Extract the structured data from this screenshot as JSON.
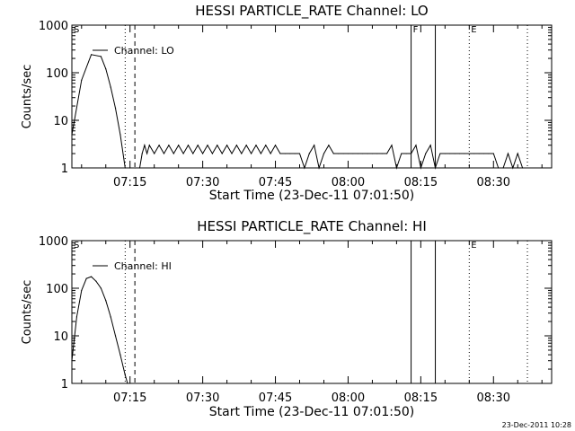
{
  "chart_data": [
    {
      "type": "line",
      "title": "HESSI PARTICLE_RATE Channel: LO",
      "xlabel": "Start Time (23-Dec-11 07:01:50)",
      "ylabel": "Counts/sec",
      "y_scale": "log",
      "ylim": [
        1,
        1000
      ],
      "xlim": [
        "07:03:00",
        "08:42:00"
      ],
      "x_ticks": [
        "07:15",
        "07:30",
        "07:45",
        "08:00",
        "08:15",
        "08:30"
      ],
      "y_ticks": [
        "1",
        "10",
        "100",
        "1000"
      ],
      "legend": "top-left",
      "grid": false,
      "series": [
        {
          "name": "Channel: LO",
          "x": [
            "07:03:00",
            "07:05:00",
            "07:07:00",
            "07:09:00",
            "07:10:00",
            "07:11:00",
            "07:12:00",
            "07:13:00",
            "07:14:00",
            "07:15:00",
            "07:16:00",
            "07:17:00",
            "07:17:30",
            "07:18:00",
            "07:18:30",
            "07:19:00",
            "07:20:00",
            "07:21:00",
            "07:22:00",
            "07:23:00",
            "07:24:00",
            "07:25:00",
            "07:26:00",
            "07:27:00",
            "07:28:00",
            "07:29:00",
            "07:30:00",
            "07:31:00",
            "07:32:00",
            "07:33:00",
            "07:34:00",
            "07:35:00",
            "07:36:00",
            "07:37:00",
            "07:38:00",
            "07:39:00",
            "07:40:00",
            "07:41:00",
            "07:42:00",
            "07:43:00",
            "07:44:00",
            "07:45:00",
            "07:46:00",
            "07:47:00",
            "07:48:00",
            "07:49:00",
            "07:50:00",
            "07:51:00",
            "07:52:00",
            "07:53:00",
            "07:54:00",
            "07:55:00",
            "07:56:00",
            "07:57:00",
            "07:58:00",
            "07:59:00",
            "08:00:00",
            "08:01:00",
            "08:02:00",
            "08:03:00",
            "08:04:00",
            "08:05:00",
            "08:06:00",
            "08:07:00",
            "08:08:00",
            "08:09:00",
            "08:10:00",
            "08:11:00",
            "08:12:00",
            "08:13:00",
            "08:14:00",
            "08:15:00",
            "08:16:00",
            "08:17:00",
            "08:18:00",
            "08:19:00",
            "08:20:00",
            "08:21:00",
            "08:22:00",
            "08:23:00",
            "08:24:00",
            "08:25:00",
            "08:26:00",
            "08:27:00",
            "08:28:00",
            "08:29:00",
            "08:30:00",
            "08:31:00",
            "08:32:00",
            "08:33:00",
            "08:34:00",
            "08:35:00",
            "08:36:00"
          ],
          "values": [
            5,
            70,
            240,
            220,
            120,
            50,
            18,
            5,
            1,
            1,
            1,
            1,
            2,
            3,
            2,
            3,
            2,
            3,
            2,
            3,
            2,
            3,
            2,
            3,
            2,
            3,
            2,
            3,
            2,
            3,
            2,
            3,
            2,
            3,
            2,
            3,
            2,
            3,
            2,
            3,
            2,
            3,
            2,
            2,
            2,
            2,
            2,
            1,
            2,
            3,
            1,
            2,
            3,
            2,
            2,
            2,
            2,
            2,
            2,
            2,
            2,
            2,
            2,
            2,
            2,
            3,
            1,
            2,
            2,
            2,
            3,
            1,
            2,
            3,
            1,
            2,
            2,
            2,
            2,
            2,
            2,
            2,
            2,
            2,
            2,
            2,
            2,
            1,
            1,
            2,
            1,
            2,
            1
          ]
        }
      ],
      "annotations": [
        {
          "label": "S",
          "x": "07:03:00",
          "style": "dotted"
        },
        {
          "label": "",
          "x": "07:14:00",
          "style": "dotted"
        },
        {
          "label": "",
          "x": "07:16:00",
          "style": "dashed"
        },
        {
          "label": "F",
          "x": "08:13:00",
          "style": "solid"
        },
        {
          "label": "",
          "x": "08:18:00",
          "style": "solid"
        },
        {
          "label": "E",
          "x": "08:25:00",
          "style": "dotted"
        },
        {
          "label": "",
          "x": "08:37:00",
          "style": "dotted"
        }
      ]
    },
    {
      "type": "line",
      "title": "HESSI PARTICLE_RATE Channel: HI",
      "xlabel": "Start Time (23-Dec-11 07:01:50)",
      "ylabel": "Counts/sec",
      "y_scale": "log",
      "ylim": [
        1,
        1000
      ],
      "xlim": [
        "07:03:00",
        "08:42:00"
      ],
      "x_ticks": [
        "07:15",
        "07:30",
        "07:45",
        "08:00",
        "08:15",
        "08:30"
      ],
      "y_ticks": [
        "1",
        "10",
        "100",
        "1000"
      ],
      "legend": "top-left",
      "grid": false,
      "series": [
        {
          "name": "Channel: HI",
          "x": [
            "07:03:00",
            "07:04:00",
            "07:05:00",
            "07:06:00",
            "07:07:00",
            "07:08:00",
            "07:09:00",
            "07:10:00",
            "07:11:00",
            "07:12:00",
            "07:13:00",
            "07:14:00",
            "07:14:30"
          ],
          "values": [
            3,
            25,
            90,
            160,
            175,
            140,
            100,
            55,
            25,
            10,
            4,
            1.5,
            1
          ]
        }
      ],
      "annotations": [
        {
          "label": "S",
          "x": "07:03:00",
          "style": "dotted"
        },
        {
          "label": "",
          "x": "07:14:00",
          "style": "dotted"
        },
        {
          "label": "",
          "x": "07:16:00",
          "style": "dashed"
        },
        {
          "label": "",
          "x": "08:13:00",
          "style": "solid"
        },
        {
          "label": "",
          "x": "08:18:00",
          "style": "solid"
        },
        {
          "label": "E",
          "x": "08:25:00",
          "style": "dotted"
        },
        {
          "label": "",
          "x": "08:37:00",
          "style": "dotted"
        }
      ]
    }
  ],
  "footer": {
    "timestamp": "23-Dec-2011 10:28"
  }
}
